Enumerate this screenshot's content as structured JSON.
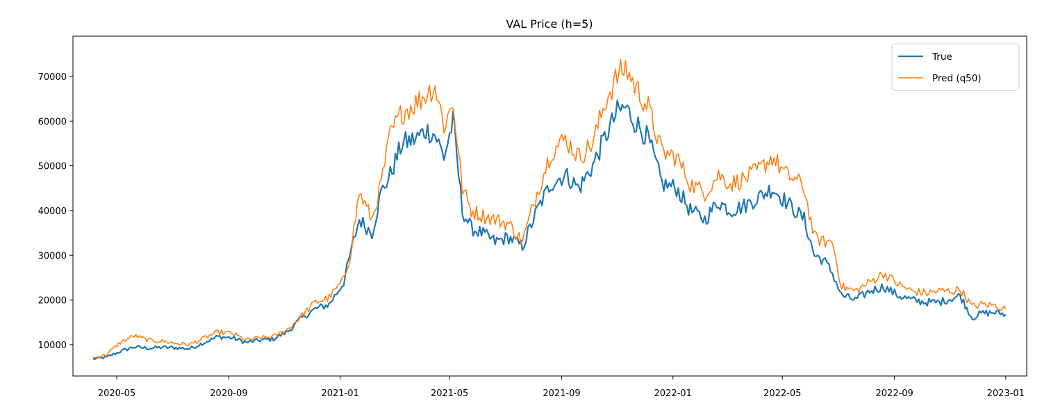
{
  "chart_data": {
    "type": "line",
    "title": "VAL Price (h=5)",
    "xlabel": "",
    "ylabel": "",
    "xlim": [
      "2020-03-14",
      "2023-01-24"
    ],
    "ylim": [
      3000,
      79000
    ],
    "x_ticks": [
      "2020-05",
      "2020-09",
      "2021-01",
      "2021-05",
      "2021-09",
      "2022-01",
      "2022-05",
      "2022-09",
      "2023-01"
    ],
    "y_ticks": [
      10000,
      20000,
      30000,
      40000,
      50000,
      60000,
      70000
    ],
    "grid": false,
    "legend_position": "top-right",
    "colors": {
      "true": "#1f77b4",
      "pred": "#ff7f0e"
    },
    "series": [
      {
        "name": "True",
        "x": [
          "2020-04-05",
          "2020-04-20",
          "2020-05-05",
          "2020-05-20",
          "2020-06-05",
          "2020-06-20",
          "2020-07-05",
          "2020-07-20",
          "2020-08-05",
          "2020-08-20",
          "2020-09-05",
          "2020-09-20",
          "2020-10-05",
          "2020-10-20",
          "2020-11-05",
          "2020-11-20",
          "2020-12-05",
          "2020-12-20",
          "2021-01-05",
          "2021-01-12",
          "2021-01-22",
          "2021-02-05",
          "2021-02-15",
          "2021-02-25",
          "2021-03-10",
          "2021-03-25",
          "2021-04-05",
          "2021-04-15",
          "2021-04-25",
          "2021-05-05",
          "2021-05-15",
          "2021-05-25",
          "2021-06-05",
          "2021-06-20",
          "2021-07-05",
          "2021-07-20",
          "2021-08-05",
          "2021-08-20",
          "2021-09-05",
          "2021-09-20",
          "2021-10-05",
          "2021-10-20",
          "2021-11-01",
          "2021-11-10",
          "2021-11-20",
          "2021-12-05",
          "2021-12-20",
          "2022-01-05",
          "2022-01-20",
          "2022-02-05",
          "2022-02-20",
          "2022-03-05",
          "2022-03-20",
          "2022-04-05",
          "2022-04-20",
          "2022-05-05",
          "2022-05-15",
          "2022-05-25",
          "2022-06-05",
          "2022-06-15",
          "2022-06-25",
          "2022-07-05",
          "2022-07-20",
          "2022-08-05",
          "2022-08-20",
          "2022-09-05",
          "2022-09-20",
          "2022-10-05",
          "2022-10-20",
          "2022-11-05",
          "2022-11-12",
          "2022-11-25",
          "2022-12-05",
          "2022-12-20",
          "2023-01-01"
        ],
        "values": [
          6800,
          7200,
          8500,
          9500,
          9200,
          9400,
          9300,
          9100,
          10500,
          11800,
          11500,
          10500,
          11000,
          11300,
          13000,
          16000,
          18000,
          19000,
          24000,
          30000,
          38000,
          35000,
          44000,
          48000,
          55000,
          56000,
          58000,
          57000,
          52000,
          60000,
          40000,
          36000,
          35000,
          33000,
          34000,
          32000,
          40000,
          46000,
          48000,
          45000,
          50000,
          57000,
          62000,
          63000,
          60000,
          56000,
          46000,
          45000,
          40000,
          38000,
          42000,
          40000,
          41000,
          43000,
          45000,
          42000,
          40000,
          38000,
          30000,
          29000,
          26000,
          21000,
          20000,
          22000,
          23000,
          21000,
          20000,
          19500,
          19500,
          20500,
          21000,
          16000,
          17000,
          17200,
          16800
        ]
      },
      {
        "name": "Pred (q50)",
        "x": [
          "2020-04-05",
          "2020-04-20",
          "2020-05-05",
          "2020-05-20",
          "2020-06-05",
          "2020-06-20",
          "2020-07-05",
          "2020-07-20",
          "2020-08-05",
          "2020-08-20",
          "2020-09-05",
          "2020-09-20",
          "2020-10-05",
          "2020-10-20",
          "2020-11-05",
          "2020-11-20",
          "2020-12-05",
          "2020-12-20",
          "2021-01-05",
          "2021-01-12",
          "2021-01-22",
          "2021-02-05",
          "2021-02-15",
          "2021-02-25",
          "2021-03-10",
          "2021-03-25",
          "2021-04-05",
          "2021-04-15",
          "2021-04-25",
          "2021-05-05",
          "2021-05-15",
          "2021-05-25",
          "2021-06-05",
          "2021-06-20",
          "2021-07-05",
          "2021-07-20",
          "2021-08-05",
          "2021-08-20",
          "2021-09-05",
          "2021-09-20",
          "2021-10-05",
          "2021-10-20",
          "2021-11-01",
          "2021-11-10",
          "2021-11-20",
          "2021-12-05",
          "2021-12-20",
          "2022-01-05",
          "2022-01-20",
          "2022-02-05",
          "2022-02-20",
          "2022-03-05",
          "2022-03-20",
          "2022-04-05",
          "2022-04-20",
          "2022-05-05",
          "2022-05-15",
          "2022-05-25",
          "2022-06-05",
          "2022-06-15",
          "2022-06-25",
          "2022-07-05",
          "2022-07-20",
          "2022-08-05",
          "2022-08-20",
          "2022-09-05",
          "2022-09-20",
          "2022-10-05",
          "2022-10-20",
          "2022-11-05",
          "2022-11-12",
          "2022-11-25",
          "2022-12-05",
          "2022-12-20",
          "2023-01-01"
        ],
        "values": [
          7000,
          7800,
          10500,
          12000,
          11000,
          10800,
          10300,
          10000,
          11500,
          12800,
          12500,
          11000,
          11500,
          11800,
          13500,
          16500,
          19500,
          20500,
          24500,
          30000,
          44000,
          38000,
          46000,
          57000,
          62000,
          64000,
          66000,
          68000,
          59000,
          64000,
          45000,
          40000,
          39000,
          38000,
          37000,
          33000,
          44000,
          53000,
          56000,
          52000,
          55000,
          65000,
          70000,
          72000,
          68000,
          63000,
          53000,
          52000,
          46000,
          44000,
          48000,
          46000,
          47000,
          49000,
          52000,
          48000,
          47000,
          45000,
          34000,
          33000,
          33000,
          23000,
          22000,
          24000,
          26000,
          23500,
          22000,
          21500,
          22000,
          22000,
          22500,
          18500,
          19000,
          18800,
          18000
        ]
      }
    ],
    "legend": [
      {
        "label": "True"
      },
      {
        "label": "Pred (q50)"
      }
    ]
  }
}
